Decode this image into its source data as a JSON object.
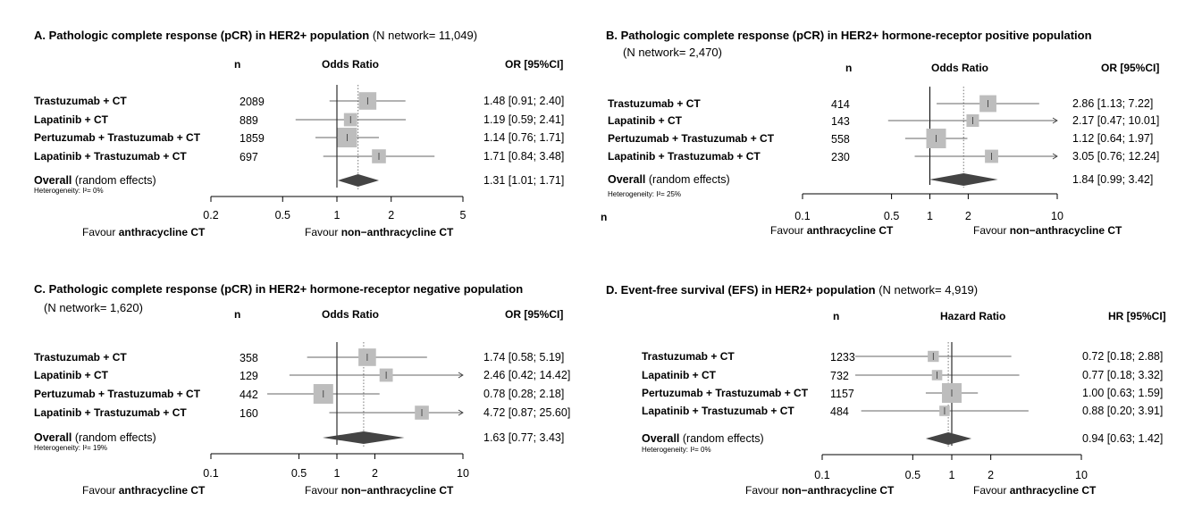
{
  "orphan_label": "n",
  "chart_data": [
    {
      "type": "forest",
      "panel": "A",
      "title_bold": "A.  Pathologic complete response (pCR) in HER2+ population",
      "title_rest": " (N network= 11,049)",
      "title_line2": "",
      "col_n": "n",
      "col_measure": "Odds Ratio",
      "col_ci": "OR  [95%CI]",
      "scale": "log",
      "ticks": [
        0.2,
        0.5,
        1,
        2,
        5
      ],
      "tick_labels": [
        "0.2",
        "0.5",
        "1",
        "2",
        "5"
      ],
      "xlim": [
        0.2,
        5
      ],
      "null_value": 1,
      "pooled_estimate": 1.31,
      "favour_left_prefix": "Favour ",
      "favour_left_bold": "anthracycline CT",
      "favour_right_prefix": "Favour ",
      "favour_right_bold": "non−anthracycline CT",
      "rows": [
        {
          "label": "Trastuzumab + CT",
          "n": "2089",
          "est": 1.48,
          "lo": 0.91,
          "hi": 2.4,
          "ci_text": "1.48  [0.91; 2.40]",
          "weight": 0.85
        },
        {
          "label": "Lapatinib + CT",
          "n": "889",
          "est": 1.19,
          "lo": 0.59,
          "hi": 2.41,
          "ci_text": "1.19  [0.59; 2.41]",
          "weight": 0.55
        },
        {
          "label": "Pertuzumab + Trastuzumab + CT",
          "n": "1859",
          "est": 1.14,
          "lo": 0.76,
          "hi": 1.71,
          "ci_text": "1.14  [0.76; 1.71]",
          "weight": 1.0
        },
        {
          "label": "Lapatinib + Trastuzumab + CT",
          "n": "697",
          "est": 1.71,
          "lo": 0.84,
          "hi": 3.48,
          "ci_text": "1.71  [0.84; 3.48]",
          "weight": 0.6
        }
      ],
      "overall": {
        "label_bold": "Overall",
        "label_rest": " (random effects)",
        "est": 1.31,
        "lo": 1.01,
        "hi": 1.71,
        "ci_text": "1.31  [1.01; 1.71]"
      },
      "heterogeneity": "Heterogeneity: I²= 0%"
    },
    {
      "type": "forest",
      "panel": "B",
      "title_bold": "B.  Pathologic complete response (pCR) in HER2+  hormone-receptor positive population",
      "title_rest": "",
      "title_line2": "(N network= 2,470)",
      "col_n": "n",
      "col_measure": "Odds Ratio",
      "col_ci": "OR  [95%CI]",
      "scale": "log",
      "ticks": [
        0.1,
        0.5,
        1,
        2,
        10
      ],
      "tick_labels": [
        "0.1",
        "0.5",
        "1",
        "2",
        "10"
      ],
      "xlim": [
        0.1,
        10
      ],
      "null_value": 1,
      "pooled_estimate": 1.84,
      "favour_left_prefix": "Favour ",
      "favour_left_bold": "anthracycline CT",
      "favour_right_prefix": "Favour ",
      "favour_right_bold": "non−anthracycline CT",
      "rows": [
        {
          "label": "Trastuzumab + CT",
          "n": "414",
          "est": 2.86,
          "lo": 1.13,
          "hi": 7.22,
          "ci_text": "2.86  [1.13; 7.22]",
          "weight": 0.8
        },
        {
          "label": "Lapatinib + CT",
          "n": "143",
          "est": 2.17,
          "lo": 0.47,
          "hi": 10.01,
          "ci_text": "2.17  [0.47; 10.01]",
          "weight": 0.5
        },
        {
          "label": "Pertuzumab + Trastuzumab + CT",
          "n": "558",
          "est": 1.12,
          "lo": 0.64,
          "hi": 1.97,
          "ci_text": "1.12  [0.64;  1.97]",
          "weight": 1.0
        },
        {
          "label": "Lapatinib + Trastuzumab + CT",
          "n": "230",
          "est": 3.05,
          "lo": 0.76,
          "hi": 12.24,
          "ci_text": "3.05  [0.76; 12.24]",
          "weight": 0.55
        }
      ],
      "overall": {
        "label_bold": "Overall",
        "label_rest": " (random effects)",
        "est": 1.84,
        "lo": 0.99,
        "hi": 3.42,
        "ci_text": "1.84  [0.99;  3.42]"
      },
      "heterogeneity": "Heterogeneity: I²= 25%"
    },
    {
      "type": "forest",
      "panel": "C",
      "title_bold": "C.  Pathologic complete response (pCR) in HER2+  hormone-receptor negative population",
      "title_rest": "",
      "title_line2": "(N network= 1,620)",
      "col_n": "n",
      "col_measure": "Odds Ratio",
      "col_ci": "OR  [95%CI]",
      "scale": "log",
      "ticks": [
        0.1,
        0.5,
        1,
        2,
        10
      ],
      "tick_labels": [
        "0.1",
        "0.5",
        "1",
        "2",
        "10"
      ],
      "xlim": [
        0.1,
        10
      ],
      "null_value": 1,
      "pooled_estimate": 1.63,
      "favour_left_prefix": "Favour ",
      "favour_left_bold": "anthracycline CT",
      "favour_right_prefix": "Favour ",
      "favour_right_bold": "non−anthracycline CT",
      "rows": [
        {
          "label": "Trastuzumab + CT",
          "n": "358",
          "est": 1.74,
          "lo": 0.58,
          "hi": 5.19,
          "ci_text": "1.74  [0.58;  5.19]",
          "weight": 0.85
        },
        {
          "label": "Lapatinib + CT",
          "n": "129",
          "est": 2.46,
          "lo": 0.42,
          "hi": 14.42,
          "ci_text": "2.46  [0.42; 14.42]",
          "weight": 0.55
        },
        {
          "label": "Pertuzumab + Trastuzumab + CT",
          "n": "442",
          "est": 0.78,
          "lo": 0.28,
          "hi": 2.18,
          "ci_text": "0.78  [0.28;  2.18]",
          "weight": 1.0
        },
        {
          "label": "Lapatinib + Trastuzumab + CT",
          "n": "160",
          "est": 4.72,
          "lo": 0.87,
          "hi": 25.6,
          "ci_text": "4.72  [0.87; 25.60]",
          "weight": 0.6
        }
      ],
      "overall": {
        "label_bold": "Overall",
        "label_rest": " (random effects)",
        "est": 1.63,
        "lo": 0.77,
        "hi": 3.43,
        "ci_text": "1.63  [0.77;  3.43]"
      },
      "heterogeneity": "Heterogeneity: I²= 19%"
    },
    {
      "type": "forest",
      "panel": "D",
      "title_bold": "D.  Event-free survival (EFS) in HER2+ population",
      "title_rest": " (N network= 4,919)",
      "title_line2": "",
      "col_n": "n",
      "col_measure": "Hazard Ratio",
      "col_ci": "HR  [95%CI]",
      "scale": "log",
      "ticks": [
        0.1,
        0.5,
        1,
        2,
        10
      ],
      "tick_labels": [
        "0.1",
        "0.5",
        "1",
        "2",
        "10"
      ],
      "xlim": [
        0.1,
        10
      ],
      "null_value": 1,
      "pooled_estimate": 0.94,
      "favour_left_prefix": "Favour ",
      "favour_left_bold": "non−anthracycline CT",
      "favour_right_prefix": "Favour ",
      "favour_right_bold": "anthracycline CT",
      "rows": [
        {
          "label": "Trastuzumab + CT",
          "n": "1233",
          "est": 0.72,
          "lo": 0.18,
          "hi": 2.88,
          "ci_text": "0.72  [0.18; 2.88]",
          "weight": 0.4
        },
        {
          "label": "Lapatinib + CT",
          "n": "732",
          "est": 0.77,
          "lo": 0.18,
          "hi": 3.32,
          "ci_text": "0.77  [0.18; 3.32]",
          "weight": 0.35
        },
        {
          "label": "Pertuzumab + Trastuzumab + CT",
          "n": "1157",
          "est": 1.0,
          "lo": 0.63,
          "hi": 1.59,
          "ci_text": "1.00  [0.63; 1.59]",
          "weight": 1.0
        },
        {
          "label": "Lapatinib + Trastuzumab + CT",
          "n": "484",
          "est": 0.88,
          "lo": 0.2,
          "hi": 3.91,
          "ci_text": "0.88  [0.20; 3.91]",
          "weight": 0.35
        }
      ],
      "overall": {
        "label_bold": "Overall",
        "label_rest": " (random effects)",
        "est": 0.94,
        "lo": 0.63,
        "hi": 1.42,
        "ci_text": "0.94  [0.63; 1.42]"
      },
      "heterogeneity": "Heterogeneity: I²= 0%"
    }
  ]
}
